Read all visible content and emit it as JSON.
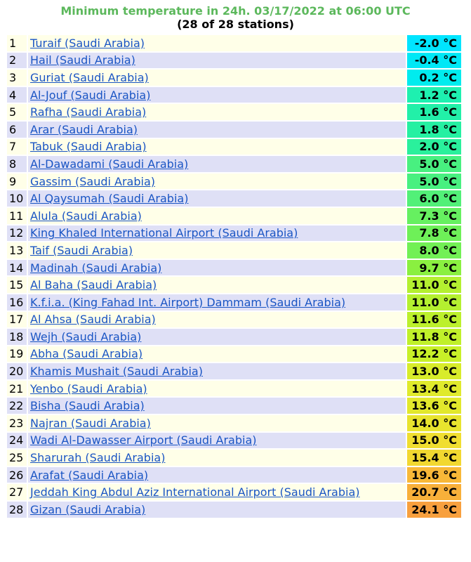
{
  "header": {
    "title": "Minimum temperature in 24h. 03/17/2022 at 06:00 UTC",
    "subtitle": "(28 of 28 stations)"
  },
  "rows": [
    {
      "rank": "1",
      "station": "Turaif (Saudi Arabia)",
      "temp": "-2.0 °C",
      "color": "#00e5ff"
    },
    {
      "rank": "2",
      "station": "Hail (Saudi Arabia)",
      "temp": "-0.4 °C",
      "color": "#00e8f6"
    },
    {
      "rank": "3",
      "station": "Guriat (Saudi Arabia)",
      "temp": "0.2 °C",
      "color": "#00ecee"
    },
    {
      "rank": "4",
      "station": "Al-Jouf (Saudi Arabia)",
      "temp": "1.2 °C",
      "color": "#1ef0b0"
    },
    {
      "rank": "5",
      "station": "Rafha (Saudi Arabia)",
      "temp": "1.6 °C",
      "color": "#22f0a8"
    },
    {
      "rank": "6",
      "station": "Arar (Saudi Arabia)",
      "temp": "1.8 °C",
      "color": "#25f0a2"
    },
    {
      "rank": "7",
      "station": "Tabuk (Saudi Arabia)",
      "temp": "2.0 °C",
      "color": "#2af09c"
    },
    {
      "rank": "8",
      "station": "Al-Dawadami (Saudi Arabia)",
      "temp": "5.0 °C",
      "color": "#48f080"
    },
    {
      "rank": "9",
      "station": "Gassim (Saudi Arabia)",
      "temp": "5.0 °C",
      "color": "#48f080"
    },
    {
      "rank": "10",
      "station": "Al Qaysumah (Saudi Arabia)",
      "temp": "6.0 °C",
      "color": "#52f078"
    },
    {
      "rank": "11",
      "station": "Alula (Saudi Arabia)",
      "temp": "7.3 °C",
      "color": "#66f060"
    },
    {
      "rank": "12",
      "station": "King Khaled International Airport (Saudi Arabia)",
      "temp": "7.8 °C",
      "color": "#6ef058"
    },
    {
      "rank": "13",
      "station": "Taif (Saudi Arabia)",
      "temp": "8.0 °C",
      "color": "#72f055"
    },
    {
      "rank": "14",
      "station": "Madinah (Saudi Arabia)",
      "temp": "9.7 °C",
      "color": "#8af040"
    },
    {
      "rank": "15",
      "station": "Al Baha (Saudi Arabia)",
      "temp": "11.0 °C",
      "color": "#b4f030"
    },
    {
      "rank": "16",
      "station": "K.f.i.a. (King Fahad Int. Airport) Dammam (Saudi Arabia)",
      "temp": "11.0 °C",
      "color": "#b4f030"
    },
    {
      "rank": "17",
      "station": "Al Ahsa (Saudi Arabia)",
      "temp": "11.6 °C",
      "color": "#bcf02c"
    },
    {
      "rank": "18",
      "station": "Wejh (Saudi Arabia)",
      "temp": "11.8 °C",
      "color": "#c0f02a"
    },
    {
      "rank": "19",
      "station": "Abha (Saudi Arabia)",
      "temp": "12.2 °C",
      "color": "#c8f028"
    },
    {
      "rank": "20",
      "station": "Khamis Mushait (Saudi Arabia)",
      "temp": "13.0 °C",
      "color": "#d8ec2a"
    },
    {
      "rank": "21",
      "station": "Yenbo (Saudi Arabia)",
      "temp": "13.4 °C",
      "color": "#e0ea2c"
    },
    {
      "rank": "22",
      "station": "Bisha (Saudi Arabia)",
      "temp": "13.6 °C",
      "color": "#e2e82c"
    },
    {
      "rank": "23",
      "station": "Najran (Saudi Arabia)",
      "temp": "14.0 °C",
      "color": "#e8e42e"
    },
    {
      "rank": "24",
      "station": "Wadi Al-Dawasser Airport (Saudi Arabia)",
      "temp": "15.0 °C",
      "color": "#f0de30"
    },
    {
      "rank": "25",
      "station": "Sharurah (Saudi Arabia)",
      "temp": "15.4 °C",
      "color": "#f2d830"
    },
    {
      "rank": "26",
      "station": "Arafat (Saudi Arabia)",
      "temp": "19.6 °C",
      "color": "#f8b838"
    },
    {
      "rank": "27",
      "station": "Jeddah King Abdul Aziz International Airport (Saudi Arabia)",
      "temp": "20.7 °C",
      "color": "#f8b03a"
    },
    {
      "rank": "28",
      "station": "Gizan (Saudi Arabia)",
      "temp": "24.1 °C",
      "color": "#f8a03e"
    }
  ]
}
